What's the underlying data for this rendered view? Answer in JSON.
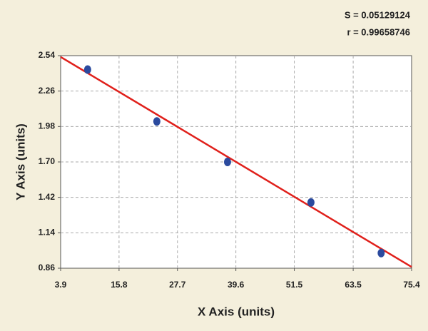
{
  "chart_data": {
    "type": "scatter",
    "annotations": [
      "S = 0.05129124",
      "r = 0.99658746"
    ],
    "x_label": "X Axis (units)",
    "y_label": "Y Axis (units)",
    "points": {
      "x": [
        9.4,
        23.5,
        37.9,
        54.9,
        69.2
      ],
      "values": [
        2.43,
        2.02,
        1.7,
        1.38,
        0.98
      ],
      "color": "#2b4a9e"
    },
    "fit_line": {
      "x": [
        3.9,
        75.4
      ],
      "values": [
        2.53,
        0.87
      ],
      "color": "#e0201b"
    },
    "xlim": [
      3.9,
      75.4
    ],
    "ylim": [
      0.86,
      2.54
    ],
    "xticks": [
      3.9,
      15.8,
      27.7,
      39.6,
      51.5,
      63.5,
      75.4
    ],
    "yticks": [
      0.86,
      1.14,
      1.42,
      {
        "value": 1.7,
        "label": "1.70"
      },
      1.98,
      2.26,
      2.54
    ],
    "grid": true
  }
}
